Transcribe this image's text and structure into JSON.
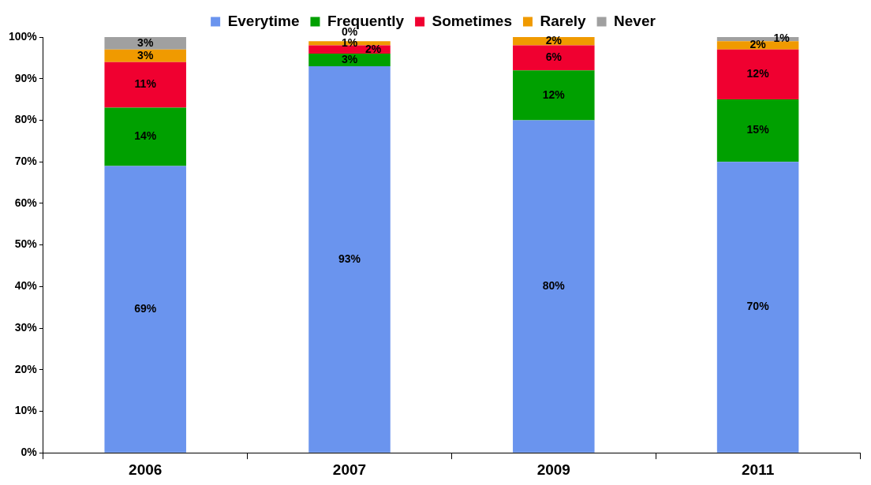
{
  "chart_data": {
    "type": "bar",
    "stacked": true,
    "categories": [
      "2006",
      "2007",
      "2009",
      "2011"
    ],
    "series": [
      {
        "name": "Everytime",
        "color": "#6a94ee",
        "values": [
          69,
          93,
          80,
          70
        ],
        "value_labels": [
          "69%",
          "93%",
          "80%",
          "70%"
        ]
      },
      {
        "name": "Frequently",
        "color": "#00a000",
        "values": [
          14,
          3,
          12,
          15
        ],
        "value_labels": [
          "14%",
          "3%",
          "12%",
          "15%"
        ]
      },
      {
        "name": "Sometimes",
        "color": "#f00030",
        "values": [
          11,
          2,
          6,
          12
        ],
        "value_labels": [
          "11%",
          "2%",
          "6%",
          "12%"
        ]
      },
      {
        "name": "Rarely",
        "color": "#f09a00",
        "values": [
          3,
          1,
          2,
          2
        ],
        "value_labels": [
          "3%",
          "1%",
          "2%",
          "2%"
        ]
      },
      {
        "name": "Never",
        "color": "#a0a0a0",
        "values": [
          3,
          0,
          0,
          1
        ],
        "value_labels": [
          "3%",
          "0%",
          null,
          "1%"
        ]
      }
    ],
    "ylim": [
      0,
      100
    ],
    "yticks": [
      {
        "value": 0,
        "label": "0%"
      },
      {
        "value": 10,
        "label": "10%"
      },
      {
        "value": 20,
        "label": "20%"
      },
      {
        "value": 30,
        "label": "30%"
      },
      {
        "value": 40,
        "label": "40%"
      },
      {
        "value": 50,
        "label": "50%"
      },
      {
        "value": 60,
        "label": "60%"
      },
      {
        "value": 70,
        "label": "70%"
      },
      {
        "value": 80,
        "label": "80%"
      },
      {
        "value": 90,
        "label": "90%"
      },
      {
        "value": 100,
        "label": "100%"
      }
    ],
    "grid": false,
    "legend": "top"
  }
}
